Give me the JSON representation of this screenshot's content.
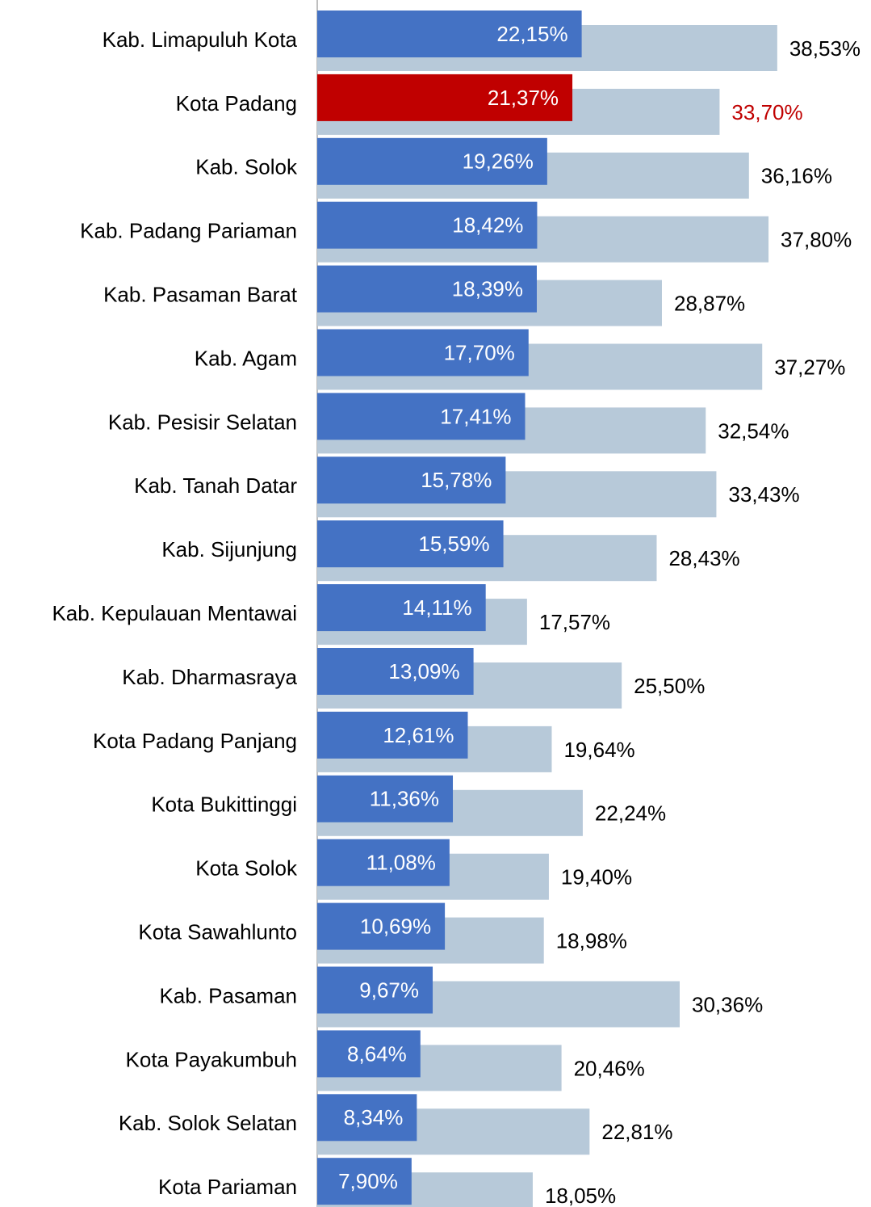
{
  "chart_data": {
    "type": "bar",
    "orientation": "horizontal",
    "categories": [
      "Kab. Limapuluh Kota",
      "Kota Padang",
      "Kab. Solok",
      "Kab. Padang Pariaman",
      "Kab. Pasaman Barat",
      "Kab. Agam",
      "Kab. Pesisir Selatan",
      "Kab. Tanah Datar",
      "Kab. Sijunjung",
      "Kab. Kepulauan Mentawai",
      "Kab. Dharmasraya",
      "Kota Padang Panjang",
      "Kota Bukittinggi",
      "Kota Solok",
      "Kota Sawahlunto",
      "Kab. Pasaman",
      "Kota Payakumbuh",
      "Kab. Solok Selatan",
      "Kota Pariaman"
    ],
    "series": [
      {
        "color": "#4472c4",
        "values": [
          22.15,
          21.37,
          19.26,
          18.42,
          18.39,
          17.7,
          17.41,
          15.78,
          15.59,
          14.11,
          13.09,
          12.61,
          11.36,
          11.08,
          10.69,
          9.67,
          8.64,
          8.34,
          7.9
        ],
        "value_labels": [
          "22,15%",
          "21,37%",
          "19,26%",
          "18,42%",
          "18,39%",
          "17,70%",
          "17,41%",
          "15,78%",
          "15,59%",
          "14,11%",
          "13,09%",
          "12,61%",
          "11,36%",
          "11,08%",
          "10,69%",
          "9,67%",
          "8,64%",
          "8,34%",
          "7,90%"
        ]
      },
      {
        "color": "#b7c9d9",
        "values": [
          38.53,
          33.7,
          36.16,
          37.8,
          28.87,
          37.27,
          32.54,
          33.43,
          28.43,
          17.57,
          25.5,
          19.64,
          22.24,
          19.4,
          18.98,
          30.36,
          20.46,
          22.81,
          18.05
        ],
        "value_labels": [
          "38,53%",
          "33,70%",
          "36,16%",
          "37,80%",
          "28,87%",
          "37,27%",
          "32,54%",
          "33,43%",
          "28,43%",
          "17,57%",
          "25,50%",
          "19,64%",
          "22,24%",
          "19,40%",
          "18,98%",
          "30,36%",
          "20,46%",
          "22,81%",
          "18,05%"
        ]
      }
    ],
    "highlight_index": 1,
    "highlight_color": "#c00000",
    "xlim": [
      0,
      40
    ]
  }
}
